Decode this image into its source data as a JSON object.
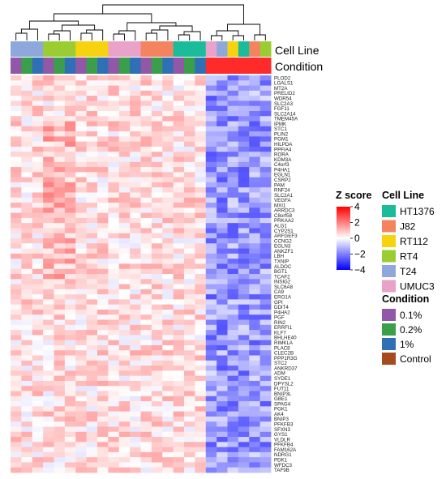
{
  "chart_data": {
    "type": "heatmap",
    "title": "",
    "tracks": {
      "cell_line_label": "Cell Line",
      "condition_label": "Condition"
    },
    "color_scale": {
      "title": "Z score",
      "ticks": [
        "4",
        "2",
        "0",
        "−2",
        "−4"
      ],
      "tick_values": [
        4,
        2,
        0,
        -2,
        -4
      ],
      "range": [
        -4,
        4
      ],
      "low_color": "#0000ff",
      "mid_color": "#ffffff",
      "high_color": "#ff0000"
    },
    "cell_line_legend": {
      "title": "Cell Line",
      "items": [
        {
          "label": "HT1376",
          "color": "#1abc9c"
        },
        {
          "label": "J82",
          "color": "#f4845f"
        },
        {
          "label": "RT112",
          "color": "#f6d30e"
        },
        {
          "label": "RT4",
          "color": "#9acd32"
        },
        {
          "label": "T24",
          "color": "#8fa8dc"
        },
        {
          "label": "UMUC3",
          "color": "#e9a3c9"
        }
      ]
    },
    "condition_legend": {
      "title": "Condition",
      "items": [
        {
          "label": "0.1%",
          "color": "#9058a6"
        },
        {
          "label": "0.2%",
          "color": "#3a9e4a"
        },
        {
          "label": "1%",
          "color": "#2f6fb5"
        },
        {
          "label": "Control",
          "color": "#a84a1f"
        }
      ]
    },
    "columns": [
      {
        "cell_line": "T24",
        "condition": "0.1%"
      },
      {
        "cell_line": "T24",
        "condition": "0.2%"
      },
      {
        "cell_line": "T24",
        "condition": "1%"
      },
      {
        "cell_line": "RT4",
        "condition": "0.1%"
      },
      {
        "cell_line": "RT4",
        "condition": "0.2%"
      },
      {
        "cell_line": "RT4",
        "condition": "1%"
      },
      {
        "cell_line": "RT112",
        "condition": "0.1%"
      },
      {
        "cell_line": "RT112",
        "condition": "0.2%"
      },
      {
        "cell_line": "RT112",
        "condition": "1%"
      },
      {
        "cell_line": "UMUC3",
        "condition": "0.1%"
      },
      {
        "cell_line": "UMUC3",
        "condition": "0.2%"
      },
      {
        "cell_line": "UMUC3",
        "condition": "1%"
      },
      {
        "cell_line": "J82",
        "condition": "0.1%"
      },
      {
        "cell_line": "J82",
        "condition": "0.2%"
      },
      {
        "cell_line": "J82",
        "condition": "1%"
      },
      {
        "cell_line": "HT1376",
        "condition": "0.1%"
      },
      {
        "cell_line": "HT1376",
        "condition": "0.2%"
      },
      {
        "cell_line": "HT1376",
        "condition": "1%"
      },
      {
        "cell_line": "UMUC3",
        "condition": "Control"
      },
      {
        "cell_line": "T24",
        "condition": "Control"
      },
      {
        "cell_line": "RT112",
        "condition": "Control"
      },
      {
        "cell_line": "HT1376",
        "condition": "Control"
      },
      {
        "cell_line": "J82",
        "condition": "Control"
      },
      {
        "cell_line": "RT4",
        "condition": "Control"
      }
    ],
    "genes": [
      "PLOD2",
      "LGALS1",
      "MT2A",
      "PRELID2",
      "WDR54",
      "SLC2A3",
      "FGF11",
      "SLC2A14",
      "TMEM45A",
      "IPMK",
      "STC1",
      "PLIN2",
      "PGM1",
      "HILPDA",
      "PPFIA4",
      "RORA",
      "KDM3A",
      "C4orf3",
      "P4HA1",
      "EGLN1",
      "CSRP2",
      "PAM",
      "RNF24",
      "SLC2A1",
      "VEGFA",
      "MXI1",
      "ARRDC3",
      "C8orf58",
      "PRKAA2",
      "ALG1",
      "CYP2S1",
      "ARFGEF3",
      "CCNG2",
      "EGLN3",
      "ANKZF1",
      "LBH",
      "TXNIP",
      "ALDOC",
      "BGT1",
      "TCAF2",
      "INSIG2",
      "SLC6A8",
      "CA9",
      "ERO1A",
      "GPI",
      "DDIT4",
      "P4HA2",
      "PGF",
      "RIN2",
      "ERRFI1",
      "KLF7",
      "BHLHE40",
      "RIMKLA",
      "PLAC8",
      "CLEC2B",
      "PPP1R3G",
      "STC2",
      "ANKRD37",
      "ADM",
      "SYDE1",
      "DPYSL2",
      "FUT11",
      "BNIP3L",
      "GBE1",
      "SPAG4",
      "PGK1",
      "AK4",
      "BNIP3",
      "PFKFB3",
      "SFXN3",
      "GYS1",
      "VLDLR",
      "PFKFB4",
      "FAM162A",
      "NDRG1",
      "PDK1",
      "WFDC3",
      "TAF9B"
    ]
  }
}
